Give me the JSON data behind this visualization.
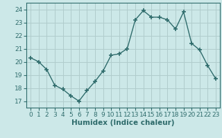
{
  "x": [
    0,
    1,
    2,
    3,
    4,
    5,
    6,
    7,
    8,
    9,
    10,
    11,
    12,
    13,
    14,
    15,
    16,
    17,
    18,
    19,
    20,
    21,
    22,
    23
  ],
  "y": [
    20.3,
    20.0,
    19.4,
    18.2,
    17.9,
    17.4,
    17.0,
    17.8,
    18.5,
    19.3,
    20.5,
    20.6,
    21.0,
    23.2,
    23.9,
    23.4,
    23.4,
    23.2,
    22.5,
    23.8,
    21.4,
    20.9,
    19.7,
    18.7
  ],
  "line_color": "#2e6b6b",
  "marker": "+",
  "marker_size": 5,
  "marker_lw": 1.2,
  "bg_color": "#cce8e8",
  "grid_color": "#b0cccc",
  "xlabel": "Humidex (Indice chaleur)",
  "ylim": [
    16.5,
    24.5
  ],
  "xlim": [
    -0.5,
    23.5
  ],
  "yticks": [
    17,
    18,
    19,
    20,
    21,
    22,
    23,
    24
  ],
  "xticks": [
    0,
    1,
    2,
    3,
    4,
    5,
    6,
    7,
    8,
    9,
    10,
    11,
    12,
    13,
    14,
    15,
    16,
    17,
    18,
    19,
    20,
    21,
    22,
    23
  ],
  "tick_color": "#2e6b6b",
  "label_fontsize": 7.5,
  "tick_fontsize": 6.5,
  "line_width": 1.0
}
